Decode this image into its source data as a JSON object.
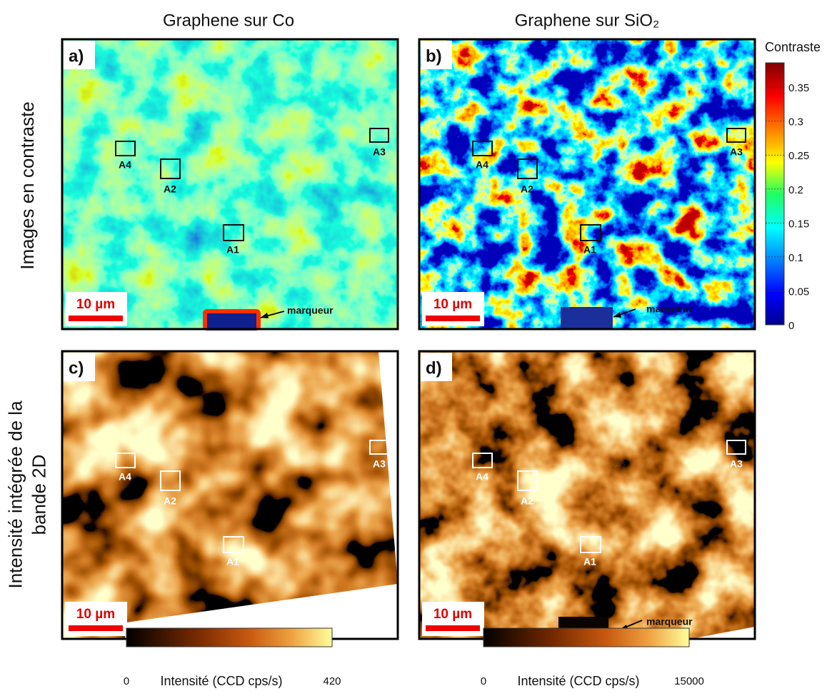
{
  "columns": [
    "Graphene sur Co",
    "Graphene sur SiO₂"
  ],
  "rows": [
    [
      "Images en contraste"
    ],
    [
      "Intensité intégrée de la",
      "bande 2D"
    ]
  ],
  "panels": [
    {
      "label": "a)",
      "scale_bar": "10 µm",
      "regions": [
        "A4",
        "A2",
        "A1",
        "A3"
      ],
      "marker": "marqueur"
    },
    {
      "label": "b)",
      "scale_bar": "10 µm",
      "regions": [
        "A4",
        "A2",
        "A1",
        "A3"
      ],
      "marker": "marqueur"
    },
    {
      "label": "c)",
      "scale_bar": "10 µm",
      "regions": [
        "A4",
        "A2",
        "A1",
        "A3"
      ]
    },
    {
      "label": "d)",
      "scale_bar": "10 µm",
      "regions": [
        "A4",
        "A2",
        "A1",
        "A3"
      ],
      "marker": "marqueur"
    }
  ],
  "contrast_colorbar": {
    "title": "Contraste",
    "ticks": [
      0,
      0.05,
      0.1,
      0.15,
      0.2,
      0.25,
      0.3,
      0.35
    ]
  },
  "intensity_colorbars": [
    {
      "min": 0,
      "max": 420,
      "label": "Intensité (CCD cps/s)"
    },
    {
      "min": 0,
      "max": 15000,
      "label": "Intensité (CCD cps/s)"
    }
  ]
}
